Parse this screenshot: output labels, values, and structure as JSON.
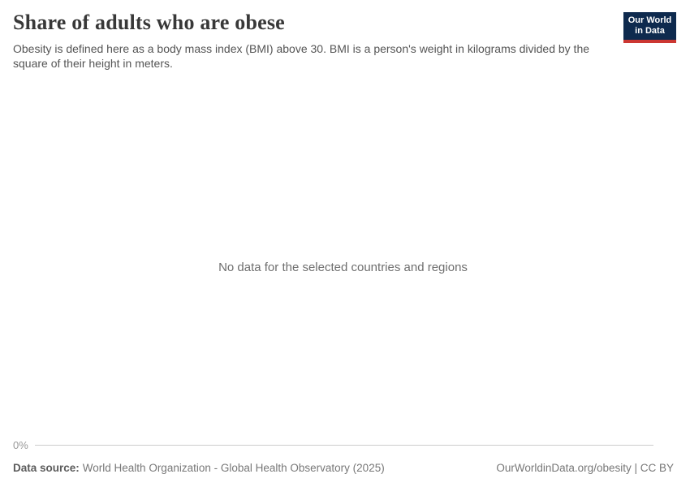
{
  "header": {
    "title": "Share of adults who are obese",
    "subtitle": "Obesity is defined here as a body mass index (BMI) above 30. BMI is a person's weight in kilograms divided by the square of their height in meters."
  },
  "logo": {
    "line1": "Our World",
    "line2": "in Data",
    "bg_color": "#0e2a4e",
    "accent_color": "#cc3732"
  },
  "chart": {
    "no_data_message": "No data for the selected countries and regions"
  },
  "axis": {
    "tick_label": "0%",
    "line_color": "#cccccc"
  },
  "footer": {
    "data_source_label": "Data source:",
    "data_source_value": "World Health Organization - Global Health Observatory (2025)",
    "url": "OurWorldinData.org/obesity",
    "separator": " | ",
    "license": "CC BY"
  },
  "chart_data": {
    "type": "line",
    "title": "Share of adults who are obese",
    "x": [],
    "series": [],
    "yticks": [
      "0%"
    ],
    "ylim_bottom_label": "0%",
    "grid": false,
    "no_data_message": "No data for the selected countries and regions"
  }
}
